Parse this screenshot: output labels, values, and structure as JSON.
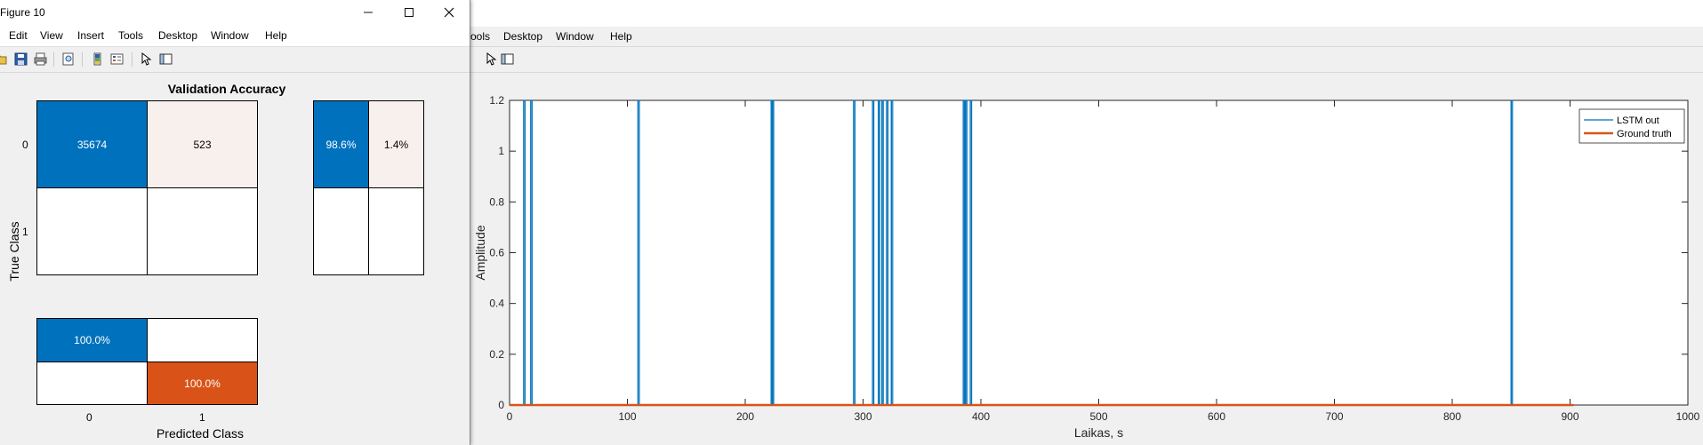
{
  "front_window": {
    "title": "Figure 10",
    "menu": [
      "Edit",
      "View",
      "Insert",
      "Tools",
      "Desktop",
      "Window",
      "Help"
    ],
    "toolbar_icons": [
      "open-icon",
      "save-icon",
      "print-icon",
      "print-preview-icon",
      "colorbar-icon",
      "legend-icon",
      "pointer-icon",
      "panel-icon"
    ],
    "confusion_chart": {
      "title": "Validation Accuracy",
      "ylabel": "True Class",
      "xlabel": "Predicted Class",
      "row_labels": [
        "0",
        "1"
      ],
      "col_labels": [
        "0",
        "1"
      ],
      "matrix": [
        [
          "35674",
          "523"
        ],
        [
          "",
          ""
        ]
      ],
      "row_summary": [
        [
          "98.6%",
          "1.4%"
        ],
        [
          "",
          ""
        ]
      ],
      "column_summary": [
        [
          "100.0%",
          ""
        ],
        [
          "",
          "100.0%"
        ]
      ]
    }
  },
  "back_window": {
    "menu": [
      "ools",
      "Desktop",
      "Window",
      "Help"
    ],
    "menu_prefix_glyph": "↴",
    "toolbar_icons": [
      "pointer-icon",
      "panel-icon"
    ]
  },
  "chart_data": {
    "type": "line",
    "xlabel": "Laikas, s",
    "ylabel": "Amplitude",
    "xlim": [
      0,
      1000
    ],
    "ylim": [
      0,
      1.2
    ],
    "xticks": [
      0,
      100,
      200,
      300,
      400,
      500,
      600,
      700,
      800,
      900,
      1000
    ],
    "yticks": [
      0,
      0.2,
      0.4,
      0.6,
      0.8,
      1,
      1.2
    ],
    "ytick_labels": [
      "0",
      "0.2",
      "0.4",
      "0.6",
      "0.8",
      "1",
      "1.2"
    ],
    "legend_position": "top-right",
    "series": [
      {
        "name": "LSTM out",
        "color": "#0072BD",
        "spike_times": [
          12,
          18,
          109,
          222,
          223,
          292,
          308,
          313,
          316,
          320,
          324,
          385,
          387,
          391,
          850
        ],
        "spike_value": 1.2
      },
      {
        "name": "Ground truth",
        "color": "#D95319",
        "x": [
          0,
          903
        ],
        "y": [
          0,
          0
        ]
      }
    ]
  },
  "colors": {
    "blue": "#0072BD",
    "light_blue_fill": "#0072BD",
    "orange": "#D95319",
    "pale_orange": "#F8F0ED"
  }
}
